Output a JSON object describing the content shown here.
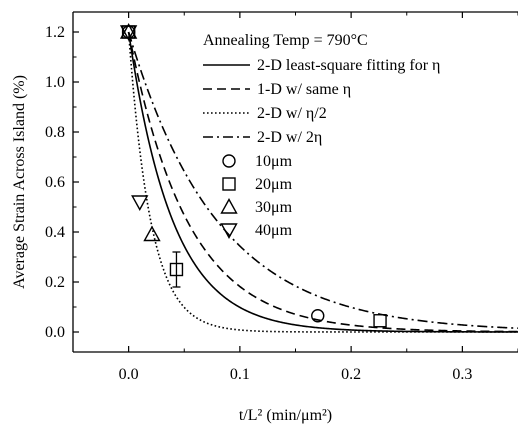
{
  "chart_data": {
    "type": "scatter",
    "title": "",
    "xlabel": "t/L² (min/μm²)",
    "ylabel": "Average Strain Across Island (%)",
    "xlim": [
      -0.05,
      0.35
    ],
    "ylim": [
      -0.08,
      1.28
    ],
    "xticks": [
      0.0,
      0.1,
      0.2,
      0.3
    ],
    "xtick_labels": [
      "0.0",
      "0.1",
      "0.2",
      "0.3"
    ],
    "yticks": [
      0.0,
      0.2,
      0.4,
      0.6,
      0.8,
      1.0,
      1.2
    ],
    "ytick_labels": [
      "0.0",
      "0.2",
      "0.4",
      "0.6",
      "0.8",
      "1.0",
      "1.2"
    ],
    "grid": false,
    "legend_placement": "top-right",
    "legend_title": "Annealing Temp = 790°C",
    "lines": [
      {
        "name": "2-D least-square fitting for η",
        "style": "solid",
        "y0": 1.2,
        "decay": 0.04
      },
      {
        "name": "1-D w/ same η",
        "style": "dashed",
        "y0": 1.2,
        "decay": 0.053
      },
      {
        "name": "2-D w/ η/2",
        "style": "dotted",
        "y0": 1.2,
        "decay": 0.02
      },
      {
        "name": "2-D w/ 2η",
        "style": "dashdot",
        "y0": 1.2,
        "decay": 0.08
      }
    ],
    "series": [
      {
        "name": "10μm",
        "marker": "circle",
        "points": [
          {
            "x": 0.0,
            "y": 1.2
          },
          {
            "x": 0.17,
            "y": 0.065
          }
        ]
      },
      {
        "name": "20μm",
        "marker": "square",
        "points": [
          {
            "x": 0.0,
            "y": 1.2
          },
          {
            "x": 0.043,
            "y": 0.25,
            "err": 0.07
          },
          {
            "x": 0.226,
            "y": 0.045
          }
        ]
      },
      {
        "name": "30μm",
        "marker": "triangle-up",
        "points": [
          {
            "x": 0.0,
            "y": 1.2
          },
          {
            "x": 0.021,
            "y": 0.39
          }
        ]
      },
      {
        "name": "40μm",
        "marker": "triangle-down",
        "points": [
          {
            "x": 0.0,
            "y": 1.2
          },
          {
            "x": 0.01,
            "y": 0.52
          }
        ]
      }
    ]
  }
}
